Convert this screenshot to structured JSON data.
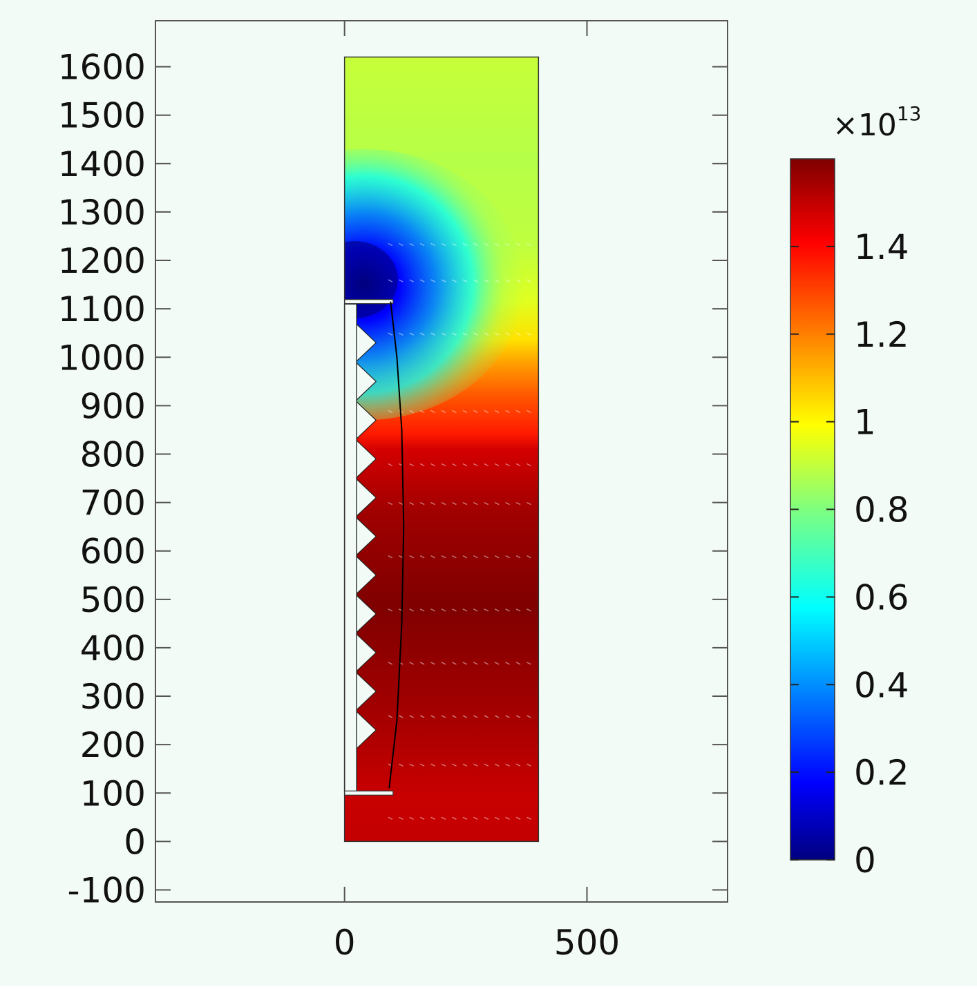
{
  "chart_data": {
    "type": "heatmap",
    "title": "",
    "xlabel": "",
    "ylabel": "",
    "xlim": [
      -390,
      790
    ],
    "ylim": [
      -125,
      1695
    ],
    "x_ticks": [
      {
        "value": 0,
        "label": "0"
      },
      {
        "value": 500,
        "label": "500"
      }
    ],
    "y_ticks": [
      {
        "value": -100,
        "label": "-100"
      },
      {
        "value": 0,
        "label": "0"
      },
      {
        "value": 100,
        "label": "100"
      },
      {
        "value": 200,
        "label": "200"
      },
      {
        "value": 300,
        "label": "300"
      },
      {
        "value": 400,
        "label": "400"
      },
      {
        "value": 500,
        "label": "500"
      },
      {
        "value": 600,
        "label": "600"
      },
      {
        "value": 700,
        "label": "700"
      },
      {
        "value": 800,
        "label": "800"
      },
      {
        "value": 900,
        "label": "900"
      },
      {
        "value": 1000,
        "label": "1000"
      },
      {
        "value": 1100,
        "label": "1100"
      },
      {
        "value": 1200,
        "label": "1200"
      },
      {
        "value": 1300,
        "label": "1300"
      },
      {
        "value": 1400,
        "label": "1400"
      },
      {
        "value": 1500,
        "label": "1500"
      },
      {
        "value": 1600,
        "label": "1600"
      }
    ],
    "domain": {
      "x": [
        0,
        400
      ],
      "y": [
        0,
        1620
      ]
    },
    "electrode": {
      "x_inner": [
        0,
        25
      ],
      "y_range": [
        100,
        1110
      ],
      "plate_bottom": {
        "x": [
          0,
          100
        ],
        "y": 100
      },
      "plate_top": {
        "x": [
          0,
          100
        ],
        "y": 1115
      },
      "teeth_y": [
        1030,
        950,
        870,
        790,
        710,
        630,
        550,
        470,
        390,
        310,
        230
      ],
      "tooth_depth": 40
    },
    "field_line": {
      "x": [
        95,
        108,
        118,
        122,
        118,
        108,
        92
      ],
      "y": [
        1115,
        1000,
        850,
        650,
        450,
        250,
        110
      ]
    },
    "colorbar": {
      "min": 0,
      "max": 1.6,
      "multiplier": "×10",
      "exponent": "13",
      "colormap": "jet",
      "ticks": [
        {
          "value": 0,
          "label": "0"
        },
        {
          "value": 0.2,
          "label": "0.2"
        },
        {
          "value": 0.4,
          "label": "0.4"
        },
        {
          "value": 0.6,
          "label": "0.6"
        },
        {
          "value": 0.8,
          "label": "0.8"
        },
        {
          "value": 1.0,
          "label": "1"
        },
        {
          "value": 1.2,
          "label": "1.2"
        },
        {
          "value": 1.4,
          "label": "1.4"
        }
      ]
    },
    "grid": false,
    "legend": "colorbar-right",
    "colors": {
      "background": "#f3fbf6",
      "frame": "#555555",
      "jet": [
        "#00007f",
        "#0000ff",
        "#007fff",
        "#00ffff",
        "#7fff7f",
        "#ffff00",
        "#ff7f00",
        "#ff0000",
        "#7f0000"
      ]
    }
  }
}
